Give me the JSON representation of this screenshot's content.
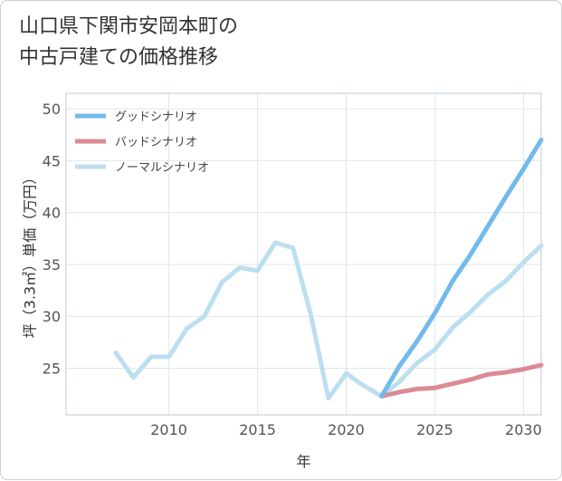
{
  "chart_data": {
    "type": "line",
    "title": "山口県下関市安岡本町の\n中古戸建ての価格推移",
    "xlabel": "年",
    "ylabel": "坪（3.3㎡）単価（万円）",
    "xlim": [
      2004.2,
      2031
    ],
    "ylim": [
      20.5,
      51.5
    ],
    "xticks": [
      2010,
      2015,
      2020,
      2025,
      2030
    ],
    "yticks": [
      25,
      30,
      35,
      40,
      45,
      50
    ],
    "grid": true,
    "legend_position": "top-left",
    "series": [
      {
        "name": "グッドシナリオ",
        "color": "#72baec",
        "x": [
          2022,
          2023,
          2024,
          2025,
          2026,
          2027,
          2028,
          2029,
          2030,
          2031
        ],
        "y": [
          22.3,
          25.2,
          27.6,
          30.3,
          33.4,
          35.9,
          38.7,
          41.5,
          44.2,
          47.0
        ]
      },
      {
        "name": "バッドシナリオ",
        "color": "#dc8a96",
        "x": [
          2022,
          2023,
          2024,
          2025,
          2026,
          2027,
          2028,
          2029,
          2030,
          2031
        ],
        "y": [
          22.3,
          22.7,
          23.0,
          23.1,
          23.5,
          23.9,
          24.4,
          24.6,
          24.9,
          25.3
        ]
      },
      {
        "name": "ノーマルシナリオ",
        "color": "#bcdff0",
        "x": [
          2007,
          2008,
          2009,
          2010,
          2011,
          2012,
          2013,
          2014,
          2015,
          2016,
          2017,
          2018,
          2019,
          2020,
          2021,
          2022,
          2023,
          2024,
          2025,
          2026,
          2027,
          2028,
          2029,
          2030,
          2031
        ],
        "y": [
          26.5,
          24.1,
          26.1,
          26.1,
          28.8,
          30.0,
          33.3,
          34.7,
          34.4,
          37.1,
          36.6,
          30.2,
          22.1,
          24.5,
          23.3,
          22.3,
          23.7,
          25.5,
          26.8,
          28.9,
          30.4,
          32.1,
          33.4,
          35.2,
          36.8
        ]
      }
    ]
  }
}
